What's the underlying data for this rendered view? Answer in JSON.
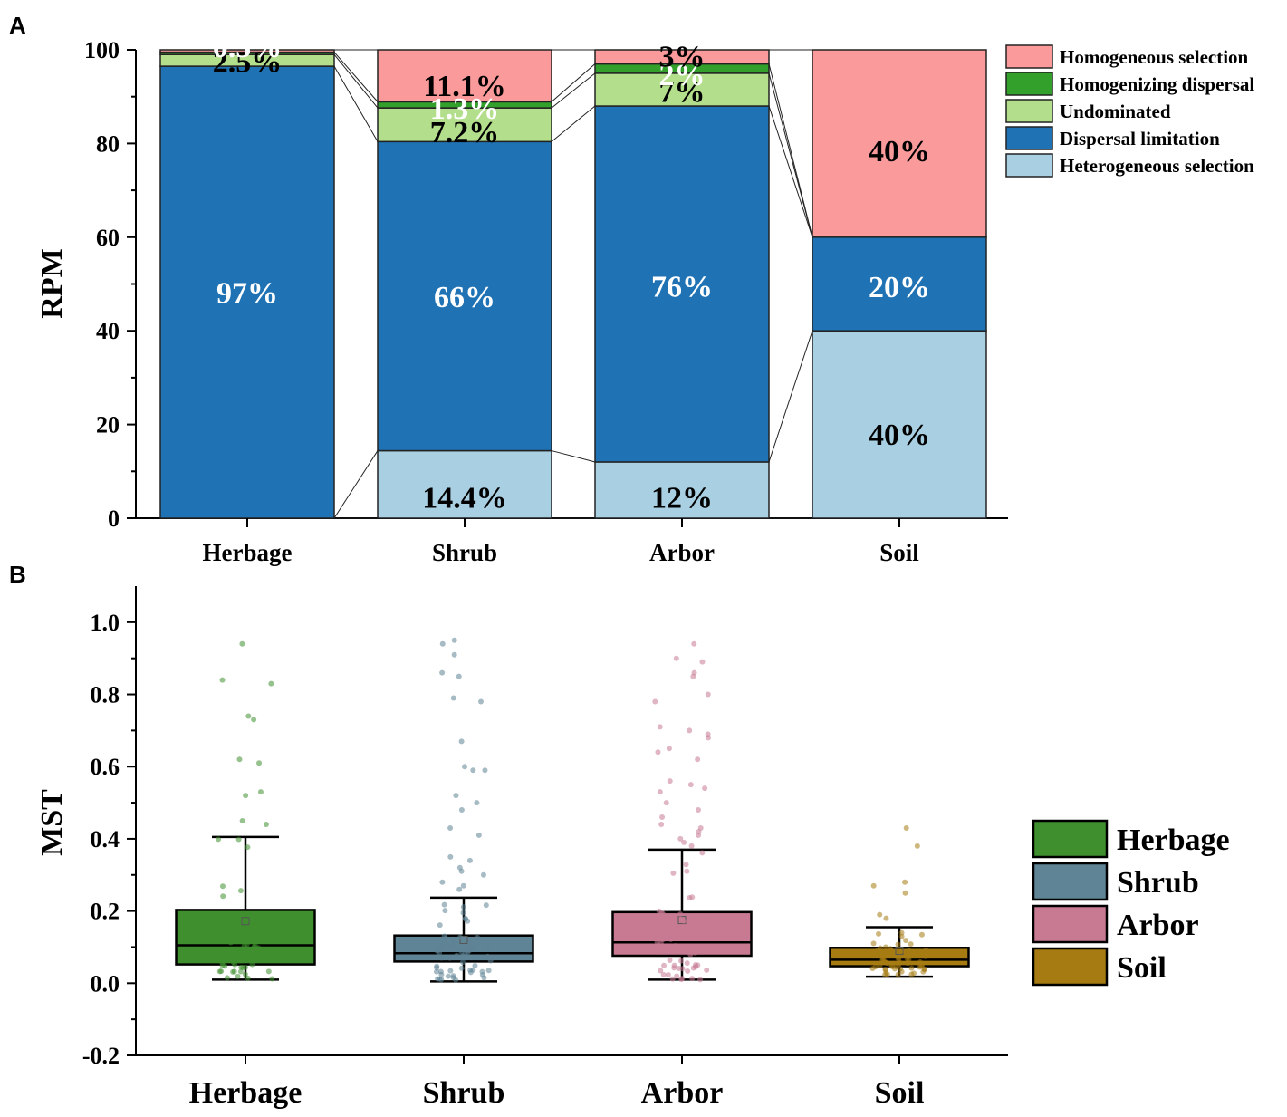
{
  "chart_data": [
    {
      "panel": "A",
      "type": "bar",
      "stacked": true,
      "ylabel": "RPM",
      "xlabel": "",
      "ylim": [
        0,
        100
      ],
      "yticks": [
        "0",
        "20",
        "40",
        "60",
        "80",
        "100"
      ],
      "categories": [
        "Herbage",
        "Shrub",
        "Arbor",
        "Soil"
      ],
      "series": [
        {
          "name": "Heterogeneous selection",
          "color": "#a8cfe2",
          "values": [
            0,
            14.4,
            12,
            40
          ],
          "labels": [
            "",
            "14.4%",
            "12%",
            "40%"
          ],
          "label_color": "#000000"
        },
        {
          "name": "Dispersal limitation",
          "color": "#1f72b4",
          "values": [
            96.5,
            66,
            76,
            20
          ],
          "labels": [
            "97%",
            "66%",
            "76%",
            "20%"
          ],
          "label_color": "#ffffff"
        },
        {
          "name": "Undominated",
          "color": "#b3df8c",
          "values": [
            2.5,
            7.2,
            7,
            0
          ],
          "labels": [
            "2.5%",
            "7.2%",
            "7%",
            ""
          ],
          "label_color": "#000000"
        },
        {
          "name": "Homogenizing dispersal",
          "color": "#33a02c",
          "values": [
            0.5,
            1.3,
            2,
            0
          ],
          "labels": [
            "0.5%",
            "1.3%",
            "2%",
            ""
          ],
          "label_color": "#ffffff"
        },
        {
          "name": "Homogeneous selection",
          "color": "#fa9a9a",
          "values": [
            0.5,
            11.1,
            3,
            40
          ],
          "labels": [
            "",
            "11.1%",
            "3%",
            "40%"
          ],
          "label_color": "#000000"
        }
      ],
      "legend": [
        "Homogeneous selection",
        "Homogenizing dispersal",
        "Undominated",
        "Dispersal limitation",
        "Heterogeneous selection"
      ],
      "legend_position": "top-right"
    },
    {
      "panel": "B",
      "type": "box",
      "ylabel": "MST",
      "xlabel": "",
      "ylim": [
        -0.2,
        1.1
      ],
      "yticks": [
        "-0.2",
        "0.0",
        "0.2",
        "0.4",
        "0.6",
        "0.8",
        "1.0"
      ],
      "categories": [
        "Herbage",
        "Shrub",
        "Arbor",
        "Soil"
      ],
      "boxes": [
        {
          "name": "Herbage",
          "color": "#3f8f2f",
          "whisker_low": 0.01,
          "q1": 0.052,
          "median": 0.105,
          "q3": 0.203,
          "whisker_high": 0.405,
          "mean": 0.172,
          "outliers": [
            0.94,
            0.84,
            0.83,
            0.74,
            0.73,
            0.62,
            0.61,
            0.53,
            0.52,
            0.45,
            0.44
          ]
        },
        {
          "name": "Shrub",
          "color": "#5f8495",
          "whisker_low": 0.005,
          "q1": 0.06,
          "median": 0.083,
          "q3": 0.132,
          "whisker_high": 0.237,
          "mean": 0.12,
          "outliers": [
            0.95,
            0.94,
            0.91,
            0.86,
            0.85,
            0.79,
            0.78,
            0.67,
            0.6,
            0.59,
            0.59,
            0.52,
            0.5,
            0.48,
            0.43,
            0.41,
            0.35,
            0.34,
            0.32,
            0.31,
            0.3,
            0.28,
            0.27,
            0.26
          ]
        },
        {
          "name": "Arbor",
          "color": "#c77a92",
          "whisker_low": 0.01,
          "q1": 0.076,
          "median": 0.113,
          "q3": 0.197,
          "whisker_high": 0.37,
          "mean": 0.175,
          "outliers": [
            0.94,
            0.9,
            0.89,
            0.86,
            0.85,
            0.8,
            0.78,
            0.71,
            0.7,
            0.69,
            0.68,
            0.65,
            0.64,
            0.62,
            0.56,
            0.55,
            0.54,
            0.53,
            0.5,
            0.48,
            0.46,
            0.44,
            0.43,
            0.42,
            0.41,
            0.4,
            0.39,
            0.38
          ]
        },
        {
          "name": "Soil",
          "color": "#a67c12",
          "whisker_low": 0.018,
          "q1": 0.047,
          "median": 0.065,
          "q3": 0.098,
          "whisker_high": 0.155,
          "mean": 0.09,
          "outliers": [
            0.43,
            0.38,
            0.28,
            0.27,
            0.25,
            0.19,
            0.18
          ]
        }
      ],
      "legend": [
        "Herbage",
        "Shrub",
        "Arbor",
        "Soil"
      ],
      "legend_position": "right"
    }
  ]
}
